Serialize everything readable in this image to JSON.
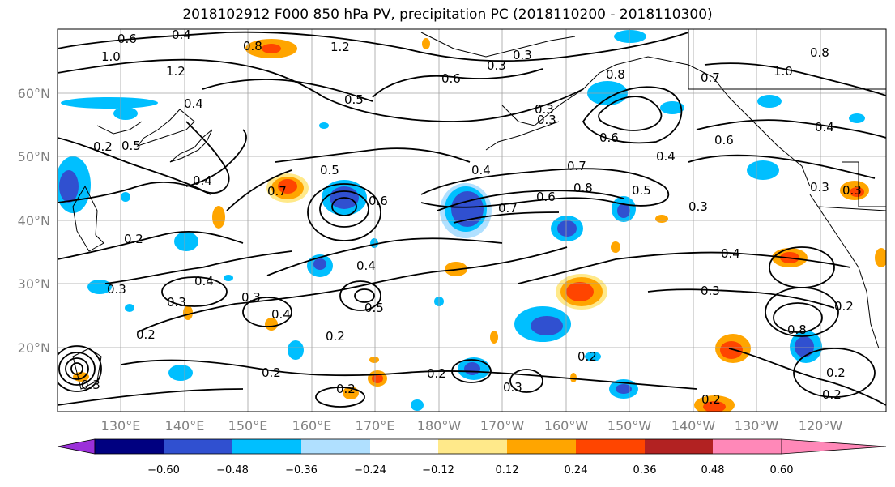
{
  "title": "2018102912 F000 850 hPa PV, precipitation PC (2018110200 - 2018110300)",
  "lat_labels": [
    "60°N",
    "50°N",
    "40°N",
    "30°N",
    "20°N"
  ],
  "lon_labels": [
    "130°E",
    "140°E",
    "150°E",
    "160°E",
    "170°E",
    "180°W",
    "170°W",
    "160°W",
    "150°W",
    "140°W",
    "130°W",
    "120°W"
  ],
  "colorbar": {
    "colors": [
      "#9b30d9",
      "#000080",
      "#3050d0",
      "#00bfff",
      "#b0e0ff",
      "#ffffff",
      "#ffe98a",
      "#ffa500",
      "#ff4500",
      "#b22222",
      "#ff88b8"
    ],
    "tick_labels": [
      "−0.60",
      "−0.48",
      "−0.36",
      "−0.24",
      "−0.12",
      "0.12",
      "0.24",
      "0.36",
      "0.48",
      "0.60"
    ]
  },
  "contour_labels": [
    "0.6",
    "0.4",
    "1.0",
    "0.8",
    "1.2",
    "0.5",
    "0.3",
    "0.2",
    "0.7",
    "0.4",
    "0.6",
    "0.3",
    "0.5",
    "0.7",
    "0.6",
    "0.8",
    "0.5",
    "0.3",
    "0.4",
    "0.3",
    "0.4",
    "0.3",
    "0.2",
    "0.3",
    "0.4",
    "0.3",
    "0.5",
    "0.2",
    "0.2",
    "0.2",
    "0.2",
    "0.3",
    "0.2",
    "0.2",
    "0.2",
    "0.4",
    "0.8",
    "0.7",
    "1.0",
    "0.4",
    "0.6",
    "0.3",
    "0.4",
    "0.4",
    "0.3",
    "0.3",
    "0.6",
    "0.2",
    "0.2",
    "0.2",
    "0.7",
    "0.3",
    "0.5",
    "0.6",
    "0.4",
    "0.8",
    "0.3",
    "1.2",
    "0.8"
  ]
}
